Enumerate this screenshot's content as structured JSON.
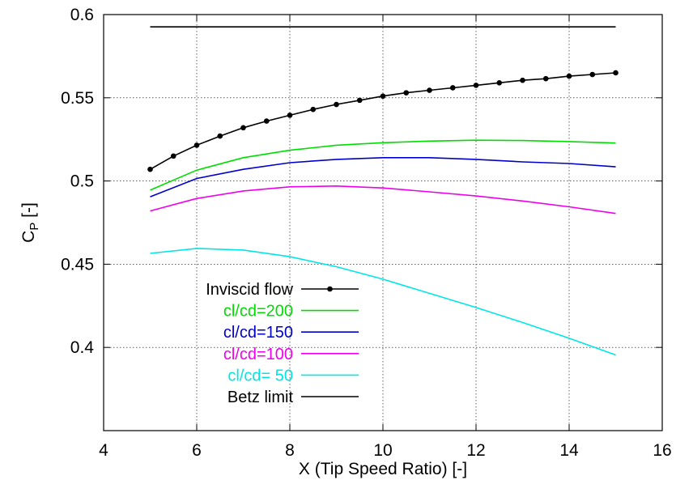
{
  "chart_data": {
    "type": "line",
    "title": "",
    "xlabel": "X (Tip Speed Ratio) [-]",
    "ylabel_main": "C",
    "ylabel_sub": "P",
    "ylabel_suffix": " [-]",
    "xlim": [
      4,
      16
    ],
    "ylim": [
      0.35,
      0.6
    ],
    "xticks": [
      4,
      6,
      8,
      10,
      12,
      14,
      16
    ],
    "xtick_labels": [
      "4",
      "6",
      "8",
      "10",
      "12",
      "14",
      "16"
    ],
    "yticks": [
      0.4,
      0.45,
      0.5,
      0.55,
      0.6
    ],
    "ytick_labels": [
      "0.4",
      "0.45",
      "0.5",
      "0.55",
      "0.6"
    ],
    "grid": true,
    "legend_position": "bottom-left",
    "series": [
      {
        "name": "Inviscid flow",
        "color": "#000000",
        "marker": "circle",
        "x": [
          5,
          5.5,
          6,
          6.5,
          7,
          7.5,
          8,
          8.5,
          9,
          9.5,
          10,
          10.5,
          11,
          11.5,
          12,
          12.5,
          13,
          13.5,
          14,
          14.5,
          15
        ],
        "y": [
          0.507,
          0.515,
          0.5215,
          0.527,
          0.532,
          0.536,
          0.5395,
          0.543,
          0.546,
          0.5485,
          0.551,
          0.553,
          0.5545,
          0.556,
          0.5575,
          0.559,
          0.5605,
          0.5615,
          0.563,
          0.564,
          0.565
        ]
      },
      {
        "name": "cl/cd=200",
        "color": "#00dd00",
        "marker": "none",
        "x": [
          5,
          6,
          7,
          8,
          9,
          10,
          11,
          12,
          13,
          14,
          15
        ],
        "y": [
          0.4945,
          0.5065,
          0.514,
          0.5185,
          0.5215,
          0.523,
          0.524,
          0.5245,
          0.5243,
          0.5237,
          0.5228
        ]
      },
      {
        "name": "cl/cd=150",
        "color": "#0000cc",
        "marker": "none",
        "x": [
          5,
          6,
          7,
          8,
          9,
          10,
          11,
          12,
          13,
          14,
          15
        ],
        "y": [
          0.4905,
          0.5015,
          0.507,
          0.511,
          0.513,
          0.514,
          0.514,
          0.513,
          0.5115,
          0.5105,
          0.5085
        ]
      },
      {
        "name": "cl/cd=100",
        "color": "#ee00ee",
        "marker": "none",
        "x": [
          5,
          6,
          7,
          8,
          9,
          10,
          11,
          12,
          13,
          14,
          15
        ],
        "y": [
          0.482,
          0.4895,
          0.494,
          0.4965,
          0.497,
          0.4958,
          0.4935,
          0.491,
          0.488,
          0.4845,
          0.4805
        ]
      },
      {
        "name": "cl/cd= 50",
        "color": "#00e6e6",
        "marker": "none",
        "x": [
          5,
          6,
          7,
          8,
          9,
          10,
          11,
          12,
          13,
          14,
          15
        ],
        "y": [
          0.4565,
          0.4595,
          0.4585,
          0.4545,
          0.4485,
          0.441,
          0.4325,
          0.424,
          0.415,
          0.4055,
          0.3955
        ]
      },
      {
        "name": "Betz limit",
        "color": "#000000",
        "marker": "none",
        "x": [
          5,
          15
        ],
        "y": [
          0.5926,
          0.5926
        ]
      }
    ]
  }
}
